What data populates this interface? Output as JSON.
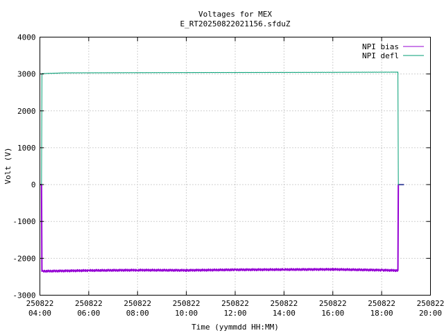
{
  "chart_data": {
    "type": "line",
    "title": "Voltages for MEX",
    "subtitle": "E_RT20250822021156.sfduZ",
    "xlabel": "Time (yymmdd HH:MM)",
    "ylabel": "Volt (V)",
    "ylim": [
      -3000,
      4000
    ],
    "yticks": [
      "-3000",
      "-2000",
      "-1000",
      "0",
      "1000",
      "2000",
      "3000",
      "4000"
    ],
    "xticks": [
      {
        "date": "250822",
        "time": "04:00"
      },
      {
        "date": "250822",
        "time": "06:00"
      },
      {
        "date": "250822",
        "time": "08:00"
      },
      {
        "date": "250822",
        "time": "10:00"
      },
      {
        "date": "250822",
        "time": "12:00"
      },
      {
        "date": "250822",
        "time": "14:00"
      },
      {
        "date": "250822",
        "time": "16:00"
      },
      {
        "date": "250822",
        "time": "18:00"
      },
      {
        "date": "250822",
        "time": "20:00"
      }
    ],
    "grid": true,
    "legend_position": "top-right",
    "series": [
      {
        "name": "NPI bias",
        "color": "#9400d3",
        "points": [
          [
            "25-08-22 04:00",
            0
          ],
          [
            "25-08-22 04:04",
            0
          ],
          [
            "25-08-22 04:05",
            -2350
          ],
          [
            "25-08-22 06:00",
            -2330
          ],
          [
            "25-08-22 08:00",
            -2320
          ],
          [
            "25-08-22 10:00",
            -2325
          ],
          [
            "25-08-22 12:00",
            -2310
          ],
          [
            "25-08-22 14:00",
            -2305
          ],
          [
            "25-08-22 16:00",
            -2300
          ],
          [
            "25-08-22 18:00",
            -2320
          ],
          [
            "25-08-22 18:40",
            -2330
          ],
          [
            "25-08-22 18:41",
            0
          ],
          [
            "25-08-22 18:55",
            0
          ]
        ]
      },
      {
        "name": "NPI defl",
        "color": "#009e73",
        "points": [
          [
            "25-08-22 04:00",
            0
          ],
          [
            "25-08-22 04:04",
            0
          ],
          [
            "25-08-22 04:05",
            3010
          ],
          [
            "25-08-22 05:00",
            3030
          ],
          [
            "25-08-22 08:00",
            3035
          ],
          [
            "25-08-22 12:00",
            3040
          ],
          [
            "25-08-22 16:00",
            3045
          ],
          [
            "25-08-22 18:40",
            3050
          ],
          [
            "25-08-22 18:41",
            0
          ],
          [
            "25-08-22 18:55",
            0
          ]
        ]
      }
    ]
  }
}
